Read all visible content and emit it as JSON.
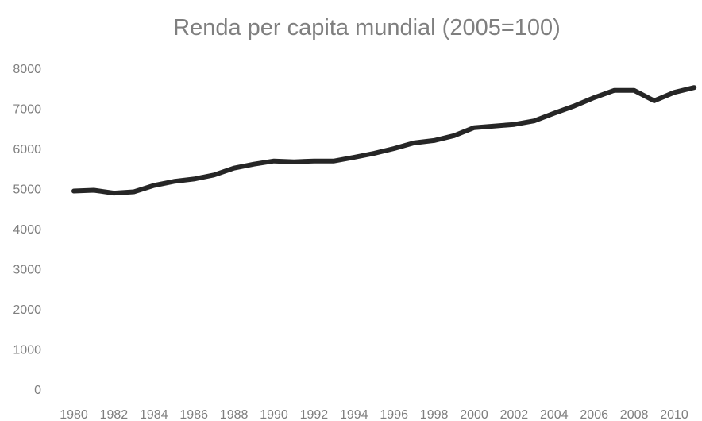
{
  "chart_data": {
    "type": "line",
    "title": "Renda per capita mundial (2005=100)",
    "xlabel": "",
    "ylabel": "",
    "ylim": [
      0,
      8000
    ],
    "yticks": [
      "0",
      "1000",
      "2000",
      "3000",
      "4000",
      "5000",
      "6000",
      "7000",
      "8000"
    ],
    "xtick_labels": [
      "1980",
      "1982",
      "1984",
      "1986",
      "1988",
      "1990",
      "1992",
      "1994",
      "1996",
      "1998",
      "2000",
      "2002",
      "2004",
      "2006",
      "2008",
      "2010"
    ],
    "grid": false,
    "legend": "none",
    "line_color": "#262626",
    "x": [
      1980,
      1981,
      1982,
      1983,
      1984,
      1985,
      1986,
      1987,
      1988,
      1989,
      1990,
      1991,
      1992,
      1993,
      1994,
      1995,
      1996,
      1997,
      1998,
      1999,
      2000,
      2001,
      2002,
      2003,
      2004,
      2005,
      2006,
      2007,
      2008,
      2009,
      2010,
      2011
    ],
    "series": [
      {
        "values": [
          4940,
          4960,
          4890,
          4920,
          5080,
          5180,
          5240,
          5340,
          5510,
          5610,
          5690,
          5670,
          5690,
          5690,
          5780,
          5880,
          6000,
          6140,
          6200,
          6320,
          6520,
          6560,
          6600,
          6690,
          6880,
          7060,
          7270,
          7450,
          7450,
          7190,
          7400,
          7520
        ]
      }
    ]
  }
}
